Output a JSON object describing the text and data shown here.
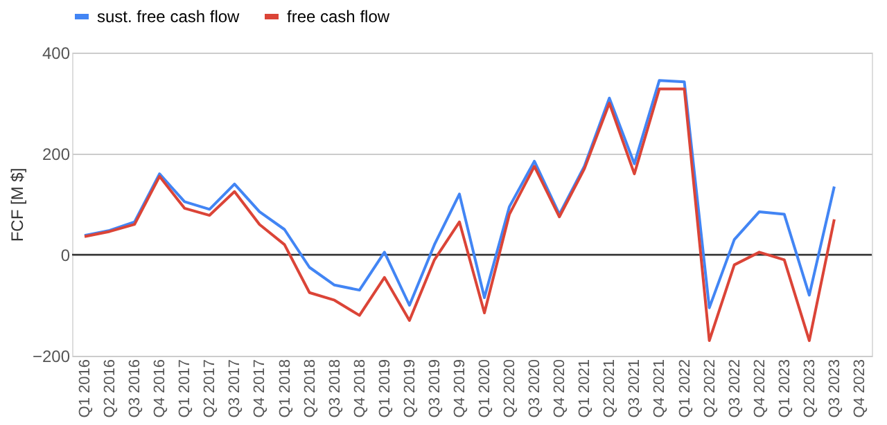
{
  "chart_data": {
    "type": "line",
    "ylabel": "FCF [M $]",
    "categories": [
      "Q1 2016",
      "Q2 2016",
      "Q3 2016",
      "Q4 2016",
      "Q1 2017",
      "Q2 2017",
      "Q3 2017",
      "Q4 2017",
      "Q1 2018",
      "Q2 2018",
      "Q3 2018",
      "Q4 2018",
      "Q1 2019",
      "Q2 2019",
      "Q3 2019",
      "Q4 2019",
      "Q1 2020",
      "Q2 2020",
      "Q3 2020",
      "Q4 2020",
      "Q1 2021",
      "Q2 2021",
      "Q3 2021",
      "Q4 2021",
      "Q1 2022",
      "Q2 2022",
      "Q3 2022",
      "Q4 2022",
      "Q1 2023",
      "Q2 2023",
      "Q3 2023",
      "Q4 2023"
    ],
    "series": [
      {
        "name": "sust. free cash flow",
        "color": "#4285f4",
        "values": [
          38,
          48,
          65,
          160,
          105,
          90,
          140,
          85,
          50,
          -25,
          -60,
          -70,
          5,
          -100,
          20,
          120,
          -85,
          95,
          185,
          80,
          175,
          310,
          180,
          345,
          342,
          -105,
          30,
          85,
          80,
          -80,
          135,
          null
        ]
      },
      {
        "name": "free cash flow",
        "color": "#db4437",
        "values": [
          36,
          46,
          60,
          155,
          92,
          78,
          125,
          60,
          20,
          -75,
          -90,
          -120,
          -45,
          -130,
          -10,
          65,
          -115,
          80,
          175,
          75,
          170,
          300,
          160,
          328,
          328,
          -170,
          -20,
          5,
          -10,
          -170,
          70,
          null
        ]
      }
    ],
    "ylim": [
      -200,
      400
    ],
    "yticks": [
      -200,
      0,
      200,
      400
    ],
    "grid": "y",
    "legend": "top",
    "ref_lines": [
      {
        "axis": "y",
        "value": 0,
        "label": null,
        "color": "#333333"
      }
    ]
  }
}
